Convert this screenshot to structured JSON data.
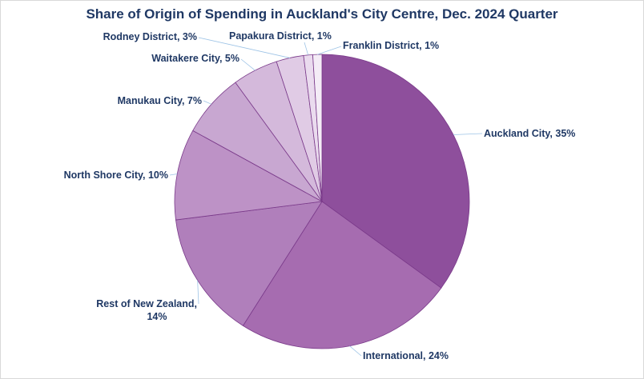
{
  "chart_data": {
    "type": "pie",
    "title": "Share of Origin of Spending in Auckland's City Centre, Dec. 2024 Quarter",
    "slices": [
      {
        "label": "Auckland City, 35%",
        "value": 35,
        "color": "#8e4f9c"
      },
      {
        "label": "International, 24%",
        "value": 24,
        "color": "#a66cb0"
      },
      {
        "label": "Rest of New Zealand, 14%",
        "value": 14,
        "color": "#b07fbb"
      },
      {
        "label": "North Shore City, 10%",
        "value": 10,
        "color": "#bd92c6"
      },
      {
        "label": "Manukau City, 7%",
        "value": 7,
        "color": "#c8a7d1"
      },
      {
        "label": "Waitakere City, 5%",
        "value": 5,
        "color": "#d4b9db"
      },
      {
        "label": "Rodney District, 3%",
        "value": 3,
        "color": "#e0cbe5"
      },
      {
        "label": "Papakura District, 1%",
        "value": 1,
        "color": "#eadbee"
      },
      {
        "label": "Franklin District, 1%",
        "value": 1,
        "color": "#f4ecf6"
      }
    ]
  }
}
